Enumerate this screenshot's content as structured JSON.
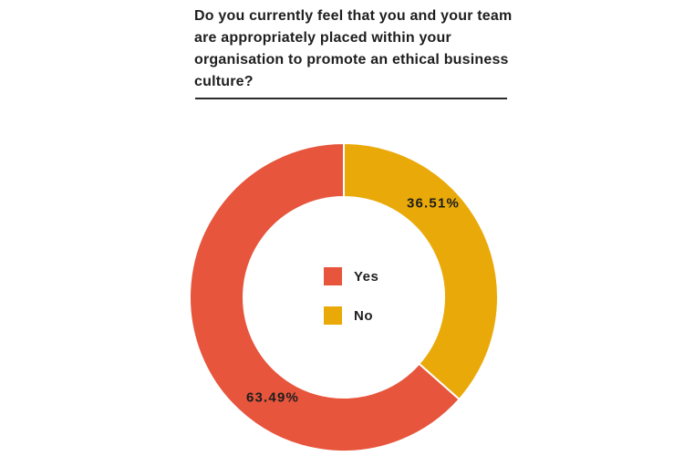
{
  "page": {
    "background": "#ffffff",
    "text_color": "#1e1e1e"
  },
  "header": {
    "title_lines": [
      "Do you currently feel that you and your team",
      "are appropriately placed within your",
      "organisation to promote an ethical business",
      "culture?"
    ]
  },
  "chart_data": {
    "type": "pie",
    "subtype": "donut",
    "title": "Do you currently feel that you and your team are appropriately placed within your organisation to promote an ethical business culture?",
    "categories": [
      "Yes",
      "No"
    ],
    "values": [
      63.49,
      36.51
    ],
    "value_labels": [
      "63.49%",
      "36.51%"
    ],
    "colors": [
      "#E6553C",
      "#E9A908"
    ],
    "slice_border_color": "#ffffff",
    "inner_radius_ratio": 0.65,
    "start_angle_deg": 0,
    "direction": "counterclockwise",
    "legend_position": "center",
    "grid": "off"
  }
}
